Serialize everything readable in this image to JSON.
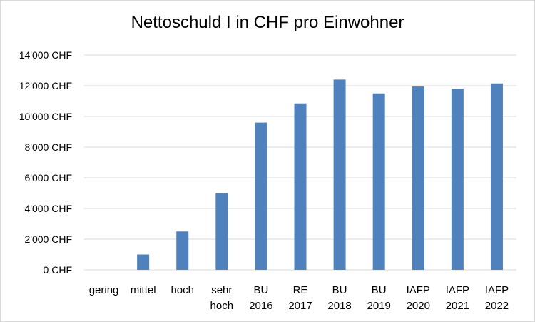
{
  "chart_data": {
    "type": "bar",
    "title": "Nettoschuld I in CHF pro Einwohner",
    "xlabel": "",
    "ylabel": "",
    "categories": [
      [
        "gering"
      ],
      [
        "mittel"
      ],
      [
        "hoch"
      ],
      [
        "sehr",
        "hoch"
      ],
      [
        "BU",
        "2016"
      ],
      [
        "RE",
        "2017"
      ],
      [
        "BU",
        "2018"
      ],
      [
        "BU",
        "2019"
      ],
      [
        "IAFP",
        "2020"
      ],
      [
        "IAFP",
        "2021"
      ],
      [
        "IAFP",
        "2022"
      ]
    ],
    "values": [
      0,
      1000,
      2500,
      5000,
      9600,
      10850,
      12400,
      11500,
      11950,
      11800,
      12150
    ],
    "ylim": [
      0,
      14000
    ],
    "yticks": [
      0,
      2000,
      4000,
      6000,
      8000,
      10000,
      12000,
      14000
    ],
    "ytick_labels": [
      "0 CHF",
      "2'000 CHF",
      "4'000 CHF",
      "6'000 CHF",
      "8'000 CHF",
      "10'000 CHF",
      "12'000 CHF",
      "14'000 CHF"
    ],
    "grid": true,
    "legend": "none",
    "bar_color": "#4f81bd",
    "grid_color": "#d9d9d9"
  }
}
